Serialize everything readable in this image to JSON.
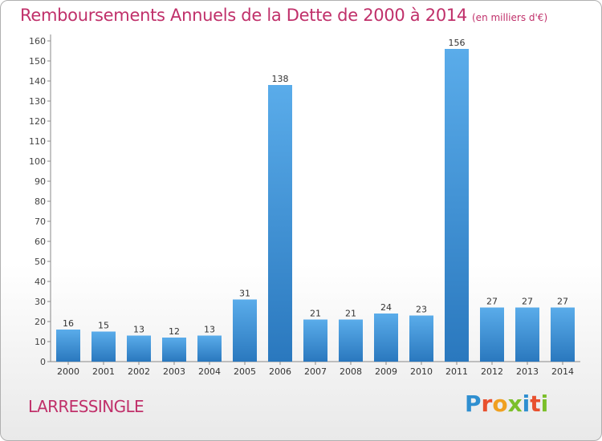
{
  "chart_data": {
    "type": "bar",
    "title": "Remboursements Annuels de la Dette de 2000 à 2014",
    "subtitle": "(en milliers d'€)",
    "categories": [
      "2000",
      "2001",
      "2002",
      "2003",
      "2004",
      "2005",
      "2006",
      "2007",
      "2008",
      "2009",
      "2010",
      "2011",
      "2012",
      "2013",
      "2014"
    ],
    "values": [
      16,
      15,
      13,
      12,
      13,
      31,
      138,
      21,
      21,
      24,
      23,
      156,
      27,
      27,
      27
    ],
    "ylim": [
      0,
      160
    ],
    "yticks": [
      0,
      10,
      20,
      30,
      40,
      50,
      60,
      70,
      80,
      90,
      100,
      110,
      120,
      130,
      140,
      150,
      160
    ],
    "xlabel": "",
    "ylabel": "",
    "grid": false,
    "bar_color": "#3a8fd6"
  },
  "footer": {
    "commune": "LARRESSINGLE",
    "logo": {
      "text": "Proxiti",
      "letters": [
        {
          "char": "P",
          "color": "#2f8fd0"
        },
        {
          "char": "r",
          "color": "#e8502e"
        },
        {
          "char": "o",
          "color": "#f0a020"
        },
        {
          "char": "x",
          "color": "#7bbf2a"
        },
        {
          "char": "i",
          "color": "#2f8fd0"
        },
        {
          "char": "t",
          "color": "#e8502e"
        },
        {
          "char": "i",
          "color": "#7bbf2a"
        }
      ]
    }
  }
}
